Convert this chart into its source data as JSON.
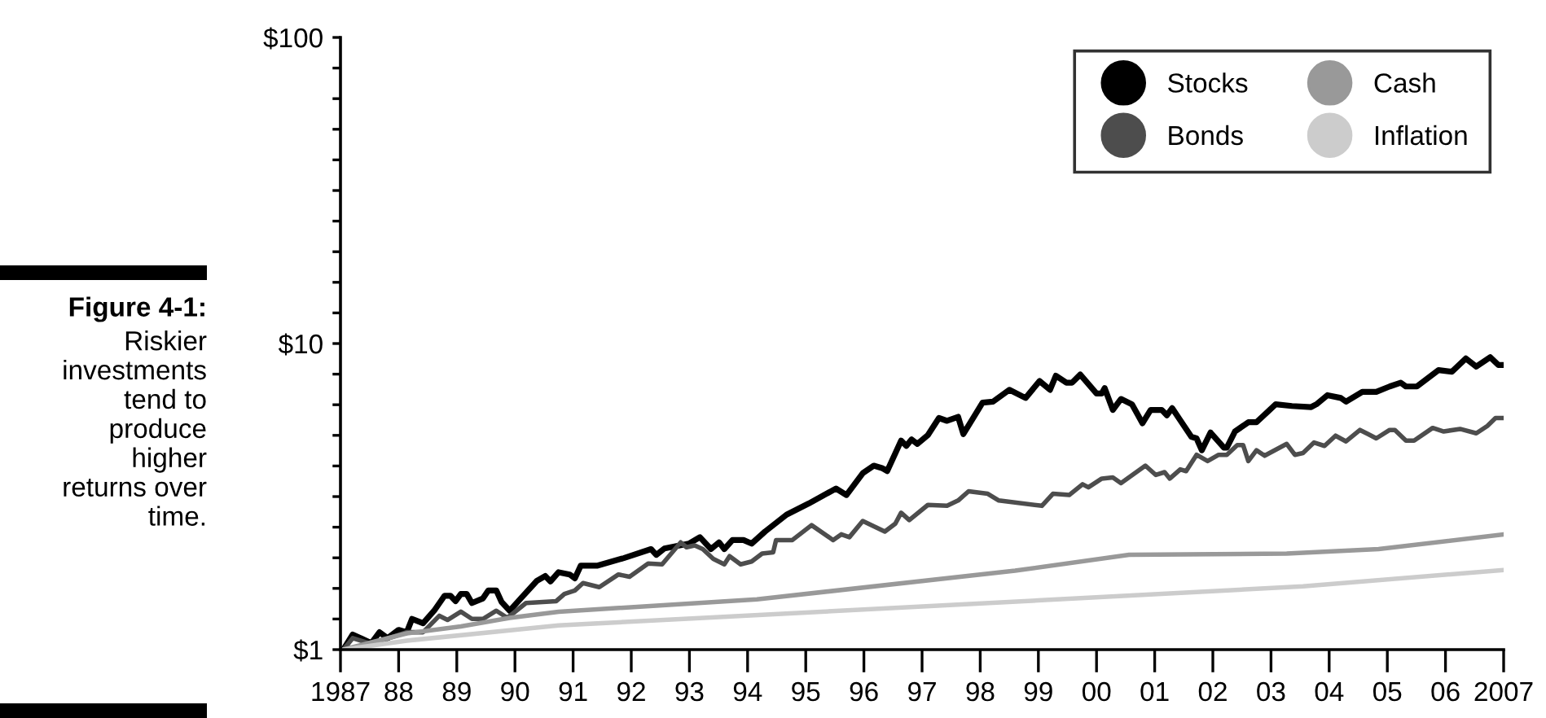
{
  "chart_data": {
    "type": "line",
    "log": "y",
    "legend": "top right",
    "xlim": [
      1987,
      2007
    ],
    "xticks": [
      {
        "value": 1987,
        "label": "1987"
      },
      {
        "value": 1988,
        "label": "88"
      },
      {
        "value": 1989,
        "label": "89"
      },
      {
        "value": 1990,
        "label": "90"
      },
      {
        "value": 1991,
        "label": "91"
      },
      {
        "value": 1992,
        "label": "92"
      },
      {
        "value": 1993,
        "label": "93"
      },
      {
        "value": 1994,
        "label": "94"
      },
      {
        "value": 1995,
        "label": "95"
      },
      {
        "value": 1996,
        "label": "96"
      },
      {
        "value": 1997,
        "label": "97"
      },
      {
        "value": 1998,
        "label": "98"
      },
      {
        "value": 1999,
        "label": "99"
      },
      {
        "value": 2000,
        "label": "00"
      },
      {
        "value": 2001,
        "label": "01"
      },
      {
        "value": 2002,
        "label": "02"
      },
      {
        "value": 2003,
        "label": "03"
      },
      {
        "value": 2004,
        "label": "04"
      },
      {
        "value": 2005,
        "label": "05"
      },
      {
        "value": 2006,
        "label": "06"
      },
      2007
    ],
    "ylim": [
      1,
      100
    ],
    "yticks": [
      {
        "value": 1,
        "label": "$1"
      },
      {
        "value": 1.259,
        "label": null
      },
      {
        "value": 1.585,
        "label": null
      },
      {
        "value": 1.995,
        "label": null
      },
      {
        "value": 2.512,
        "label": null
      },
      {
        "value": 3.162,
        "label": null
      },
      {
        "value": 3.981,
        "label": null
      },
      {
        "value": 5.012,
        "label": null
      },
      {
        "value": 6.31,
        "label": null
      },
      {
        "value": 7.943,
        "label": null
      },
      {
        "value": 10,
        "label": "$10"
      },
      {
        "value": 12.59,
        "label": null
      },
      {
        "value": 15.85,
        "label": null
      },
      {
        "value": 19.95,
        "label": null
      },
      {
        "value": 25.12,
        "label": null
      },
      {
        "value": 31.62,
        "label": null
      },
      {
        "value": 39.81,
        "label": null
      },
      {
        "value": 50.12,
        "label": null
      },
      {
        "value": 63.1,
        "label": null
      },
      {
        "value": 79.43,
        "label": null
      },
      {
        "value": 100,
        "label": "$100"
      }
    ],
    "annotations": [
      "Figure 4-1:",
      "Riskier\ninvestments\ntend to\nproduce\nhigher\nreturns over\ntime."
    ],
    "series": [
      {
        "name": "Stocks",
        "color": "#000000",
        "x": [
          1987.05,
          1987.21,
          1987.35,
          1987.53,
          1987.67,
          1987.81,
          1988.0,
          1988.14,
          1988.23,
          1988.42,
          1988.61,
          1988.79,
          1988.89,
          1988.98,
          1989.07,
          1989.17,
          1989.26,
          1989.45,
          1989.54,
          1989.68,
          1989.77,
          1989.91,
          1990.1,
          1990.38,
          1990.52,
          1990.61,
          1990.75,
          1990.94,
          1991.03,
          1991.13,
          1991.41,
          1991.87,
          1992.34,
          1992.43,
          1992.57,
          1992.99,
          1993.18,
          1993.37,
          1993.51,
          1993.6,
          1993.74,
          1993.93,
          1994.07,
          1994.3,
          1994.67,
          1995.05,
          1995.52,
          1995.7,
          1995.98,
          1996.17,
          1996.31,
          1996.4,
          1996.64,
          1996.73,
          1996.82,
          1996.92,
          1997.1,
          1997.29,
          1997.43,
          1997.62,
          1997.71,
          1998.04,
          1998.22,
          1998.5,
          1998.78,
          1999.02,
          1999.2,
          1999.3,
          1999.48,
          1999.58,
          1999.72,
          2000.0,
          2000.09,
          2000.14,
          2000.28,
          2000.42,
          2000.61,
          2000.79,
          2000.93,
          2001.12,
          2001.21,
          2001.3,
          2001.63,
          2001.72,
          2001.81,
          2001.96,
          2002.19,
          2002.24,
          2002.38,
          2002.61,
          2002.75,
          2003.08,
          2003.36,
          2003.69,
          2003.78,
          2003.97,
          2004.2,
          2004.29,
          2004.57,
          2004.81,
          2005.04,
          2005.23,
          2005.32,
          2005.51,
          2005.88,
          2006.11,
          2006.35,
          2006.53,
          2006.77,
          2006.91,
          2007.0
        ],
        "values": [
          1.0,
          1.12,
          1.09,
          1.05,
          1.14,
          1.09,
          1.16,
          1.14,
          1.26,
          1.22,
          1.34,
          1.5,
          1.5,
          1.44,
          1.52,
          1.52,
          1.42,
          1.47,
          1.56,
          1.56,
          1.43,
          1.34,
          1.47,
          1.68,
          1.74,
          1.67,
          1.79,
          1.76,
          1.71,
          1.88,
          1.88,
          1.99,
          2.13,
          2.04,
          2.14,
          2.22,
          2.33,
          2.13,
          2.24,
          2.13,
          2.28,
          2.28,
          2.22,
          2.43,
          2.76,
          3.0,
          3.36,
          3.2,
          3.77,
          3.99,
          3.92,
          3.83,
          4.82,
          4.63,
          4.86,
          4.7,
          5.02,
          5.71,
          5.59,
          5.76,
          5.06,
          6.41,
          6.46,
          7.06,
          6.64,
          7.54,
          7.06,
          7.85,
          7.45,
          7.45,
          7.92,
          6.87,
          6.87,
          7.15,
          6.07,
          6.59,
          6.33,
          5.49,
          6.07,
          6.07,
          5.83,
          6.15,
          4.96,
          4.9,
          4.48,
          5.12,
          4.57,
          4.57,
          5.16,
          5.53,
          5.53,
          6.33,
          6.25,
          6.2,
          6.33,
          6.78,
          6.64,
          6.46,
          6.95,
          6.95,
          7.24,
          7.45,
          7.24,
          7.24,
          8.19,
          8.09,
          8.94,
          8.41,
          9.02,
          8.51,
          8.51
        ]
      },
      {
        "name": "Bonds",
        "color": "#4d4d4d",
        "x": [
          1987.05,
          1987.21,
          1987.49,
          1987.77,
          1988.14,
          1988.42,
          1988.7,
          1988.84,
          1989.07,
          1989.26,
          1989.45,
          1989.68,
          1989.87,
          1990.19,
          1990.71,
          1990.85,
          1991.03,
          1991.17,
          1991.45,
          1991.78,
          1991.97,
          1992.29,
          1992.53,
          1992.85,
          1992.95,
          1993.09,
          1993.23,
          1993.41,
          1993.6,
          1993.69,
          1993.88,
          1994.07,
          1994.25,
          1994.44,
          1994.49,
          1994.77,
          1995.1,
          1995.47,
          1995.61,
          1995.75,
          1995.98,
          1996.36,
          1996.54,
          1996.64,
          1996.78,
          1997.1,
          1997.43,
          1997.62,
          1997.8,
          1998.13,
          1998.32,
          1999.06,
          1999.25,
          1999.53,
          1999.76,
          1999.86,
          2000.09,
          2000.28,
          2000.42,
          2000.84,
          2001.02,
          2001.17,
          2001.26,
          2001.44,
          2001.54,
          2001.72,
          2001.91,
          2002.1,
          2002.24,
          2002.42,
          2002.52,
          2002.61,
          2002.75,
          2002.89,
          2003.27,
          2003.41,
          2003.55,
          2003.74,
          2003.92,
          2004.11,
          2004.29,
          2004.53,
          2004.67,
          2004.81,
          2005.04,
          2005.13,
          2005.32,
          2005.46,
          2005.78,
          2005.97,
          2006.25,
          2006.53,
          2006.72,
          2006.86,
          2007.0
        ],
        "values": [
          1.0,
          1.09,
          1.05,
          1.08,
          1.14,
          1.14,
          1.29,
          1.25,
          1.33,
          1.26,
          1.26,
          1.34,
          1.27,
          1.42,
          1.44,
          1.52,
          1.56,
          1.65,
          1.6,
          1.76,
          1.73,
          1.91,
          1.9,
          2.24,
          2.16,
          2.19,
          2.13,
          1.98,
          1.9,
          2.02,
          1.9,
          1.94,
          2.06,
          2.08,
          2.28,
          2.28,
          2.55,
          2.28,
          2.38,
          2.33,
          2.63,
          2.43,
          2.58,
          2.8,
          2.65,
          2.97,
          2.95,
          3.07,
          3.29,
          3.23,
          3.07,
          2.95,
          3.23,
          3.2,
          3.47,
          3.39,
          3.62,
          3.65,
          3.5,
          3.99,
          3.72,
          3.8,
          3.62,
          3.88,
          3.83,
          4.33,
          4.13,
          4.33,
          4.33,
          4.66,
          4.66,
          4.13,
          4.48,
          4.3,
          4.7,
          4.33,
          4.39,
          4.75,
          4.63,
          5.0,
          4.79,
          5.22,
          5.06,
          4.9,
          5.22,
          5.22,
          4.82,
          4.82,
          5.3,
          5.16,
          5.26,
          5.09,
          5.38,
          5.71,
          5.71
        ]
      },
      {
        "name": "Cash",
        "color": "#999999",
        "x": [
          1987.05,
          1988.14,
          1989.07,
          1989.91,
          1990.75,
          1994.16,
          1998.6,
          2000.56,
          2003.27,
          2004.85,
          2007.0
        ],
        "values": [
          1.0,
          1.13,
          1.19,
          1.27,
          1.33,
          1.46,
          1.81,
          2.04,
          2.06,
          2.13,
          2.38
        ]
      },
      {
        "name": "Inflation",
        "color": "#cccccc",
        "x": [
          1987.05,
          1988.14,
          1990.75,
          1996.26,
          1999.06,
          2003.55,
          2007.0
        ],
        "values": [
          1.0,
          1.07,
          1.2,
          1.36,
          1.45,
          1.61,
          1.82
        ]
      }
    ]
  }
}
